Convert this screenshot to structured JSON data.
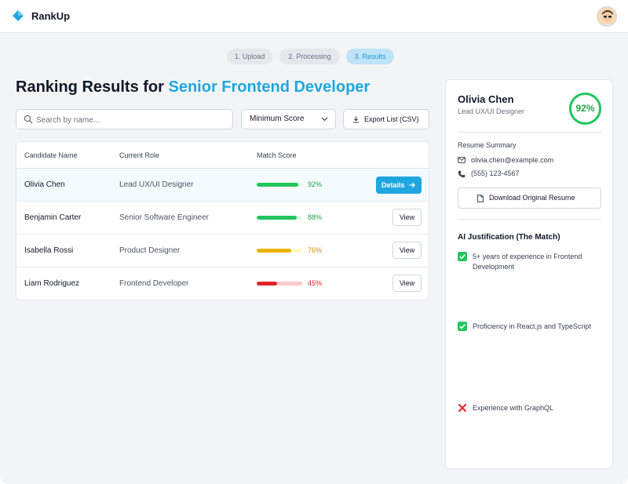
{
  "app": {
    "name": "RankUp"
  },
  "steps": [
    "1. Upload",
    "2. Processing",
    "3. Results"
  ],
  "page": {
    "title_prefix": "Ranking Results for ",
    "title_role": "Senior Frontend Developer"
  },
  "toolbar": {
    "search_placeholder": "Search by name...",
    "filter_label": "Minimum Score",
    "export_label": "Export List (CSV)"
  },
  "table": {
    "headers": [
      "Candidate Name",
      "Current Role",
      "Match Score"
    ],
    "rows": [
      {
        "name": "Olivia Chen",
        "role": "Lead UX/UI Designer",
        "score": 92,
        "score_text": "92%",
        "action": "Details",
        "bar_color": "#22c55e",
        "track_color": "#dcfce7",
        "text_color": "#22a34a"
      },
      {
        "name": "Benjamin Carter",
        "role": "Senior Software Engineer",
        "score": 88,
        "score_text": "88%",
        "action": "View",
        "bar_color": "#22c55e",
        "track_color": "#dcfce7",
        "text_color": "#22a34a"
      },
      {
        "name": "Isabella Rossi",
        "role": "Product Designer",
        "score": 76,
        "score_text": "76%",
        "action": "View",
        "bar_color": "#eab308",
        "track_color": "#fef9c3",
        "text_color": "#ca8a04"
      },
      {
        "name": "Liam Rodriguez",
        "role": "Frontend Developer",
        "score": 45,
        "score_text": "45%",
        "action": "View",
        "bar_color": "#dc2626",
        "track_color": "#fecaca",
        "text_color": "#dc2626"
      }
    ]
  },
  "detail": {
    "name": "Olivia Chen",
    "role": "Lead UX/UI Designer",
    "score_text": "92%",
    "summary_heading": "Resume Summary",
    "email": "olivia.chen@example.com",
    "phone": "(555) 123-4567",
    "download_label": "Download Original Resume",
    "justification_heading": "AI Justification (The Match)",
    "justifications": [
      {
        "text": "5+ years of experience in Frontend Development",
        "met": true
      },
      {
        "text": "Proficiency in React.js and TypeScript",
        "met": true
      },
      {
        "text": "Experience with GraphQL",
        "met": false
      }
    ]
  },
  "colors": {
    "accent": "#1fa6e0",
    "good": "#22c55e",
    "warn": "#eab308",
    "bad": "#dc2626"
  }
}
